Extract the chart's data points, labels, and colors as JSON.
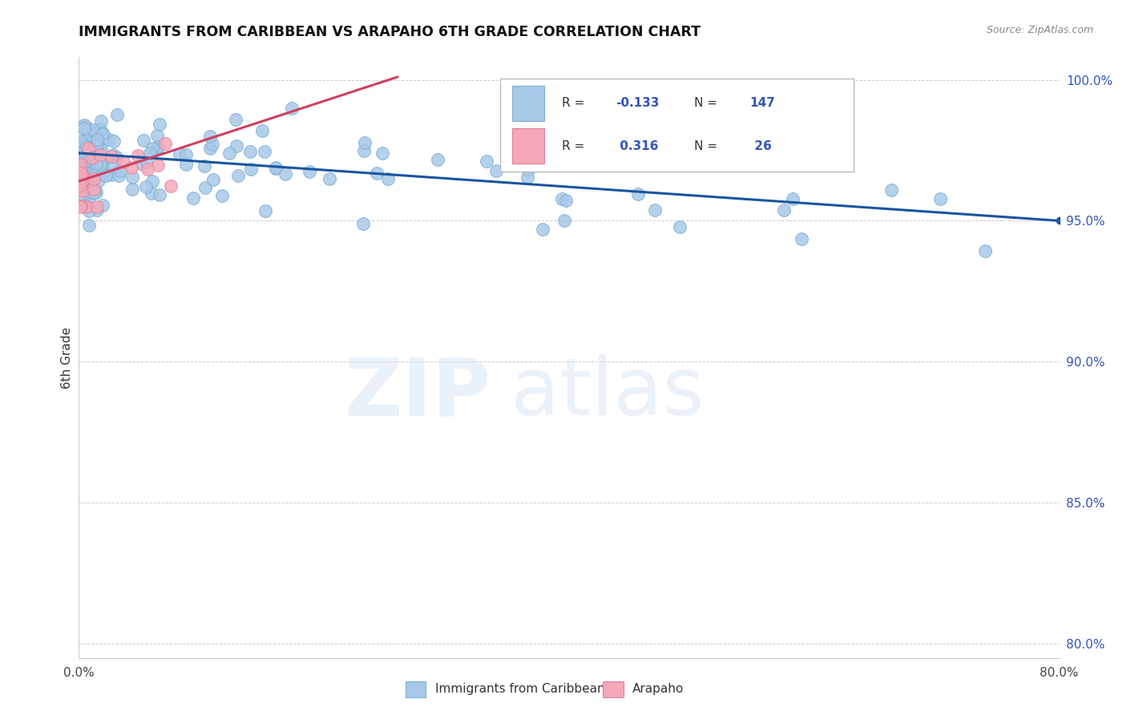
{
  "title": "IMMIGRANTS FROM CARIBBEAN VS ARAPAHO 6TH GRADE CORRELATION CHART",
  "source": "Source: ZipAtlas.com",
  "ylabel": "6th Grade",
  "xlim": [
    0.0,
    0.8
  ],
  "ylim": [
    0.795,
    1.008
  ],
  "x_ticks": [
    0.0,
    0.2,
    0.4,
    0.6,
    0.8
  ],
  "x_tick_labels": [
    "0.0%",
    "",
    "",
    "",
    "80.0%"
  ],
  "y_ticks_right": [
    0.8,
    0.85,
    0.9,
    0.95,
    1.0
  ],
  "blue_R": -0.133,
  "blue_N": 147,
  "pink_R": 0.316,
  "pink_N": 26,
  "blue_color": "#a8c8e8",
  "pink_color": "#f4a8b8",
  "blue_edge_color": "#7aafd0",
  "pink_edge_color": "#e080a0",
  "blue_line_color": "#1a55a0",
  "pink_line_color": "#d04060",
  "legend_label_blue": "Immigrants from Caribbean",
  "legend_label_pink": "Arapaho",
  "blue_trend_x0": 0.0,
  "blue_trend_x1": 0.8,
  "blue_trend_y0": 0.974,
  "blue_trend_y1": 0.95,
  "pink_trend_x0": 0.0,
  "pink_trend_x1": 0.26,
  "pink_trend_y0": 0.964,
  "pink_trend_y1": 1.001
}
